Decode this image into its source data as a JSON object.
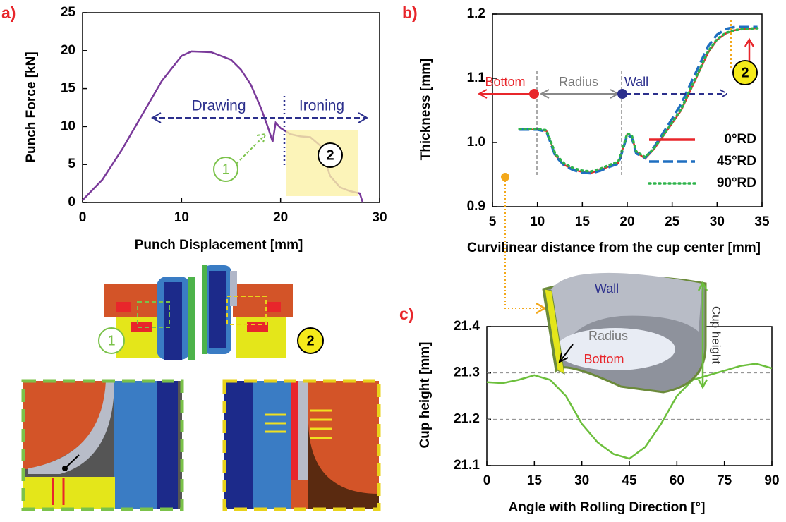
{
  "chart_data": [
    {
      "type": "line",
      "label": "a)",
      "xlabel": "Punch Displacement [mm]",
      "ylabel": "Punch Force [kN]",
      "x": [
        0,
        2,
        4,
        6,
        8,
        10,
        11,
        13,
        15,
        16,
        17,
        18,
        18.7,
        19.2,
        19.5,
        20,
        21,
        22,
        23,
        24,
        25,
        26,
        27,
        28,
        28.3
      ],
      "values": [
        0.3,
        3,
        7,
        11.5,
        16,
        19.3,
        19.9,
        19.8,
        18.8,
        17.5,
        15.5,
        12.5,
        10,
        8,
        10.5,
        9.8,
        9,
        8.7,
        8.6,
        7.5,
        3.5,
        2,
        1.5,
        1.2,
        0
      ],
      "color": "#7a3a9a",
      "xlim": [
        0,
        30
      ],
      "ylim": [
        0,
        25
      ],
      "xticks": [
        0,
        10,
        20,
        30
      ],
      "yticks": [
        0,
        5,
        10,
        15,
        20,
        25
      ],
      "grid": false,
      "annotations": [
        "Drawing",
        "Ironing",
        "1",
        "2"
      ]
    },
    {
      "type": "line",
      "label": "b)",
      "xlabel": "Curvilinear distance from the cup center [mm]",
      "ylabel": "Thickness [mm]",
      "x": [
        8,
        10,
        11,
        11.5,
        12,
        13,
        14,
        15,
        16,
        17,
        18,
        19,
        19.5,
        20,
        20.5,
        21,
        22,
        23,
        24,
        25,
        26,
        27,
        28,
        29,
        30,
        31,
        32,
        33,
        34.5
      ],
      "series": [
        {
          "name": "0°RD",
          "color": "#e8262b",
          "style": "solid",
          "values": [
            1.02,
            1.02,
            1.018,
            1.0,
            0.98,
            0.965,
            0.958,
            0.954,
            0.953,
            0.957,
            0.963,
            0.968,
            0.99,
            1.013,
            1.01,
            0.985,
            0.975,
            0.99,
            1.01,
            1.03,
            1.05,
            1.08,
            1.11,
            1.14,
            1.16,
            1.17,
            1.175,
            1.177,
            1.178
          ]
        },
        {
          "name": "45°RD",
          "color": "#1f6fc0",
          "style": "dashed",
          "values": [
            1.02,
            1.02,
            1.017,
            0.998,
            0.979,
            0.964,
            0.957,
            0.953,
            0.952,
            0.956,
            0.962,
            0.967,
            0.988,
            1.012,
            1.008,
            0.983,
            0.976,
            0.993,
            1.015,
            1.037,
            1.06,
            1.09,
            1.12,
            1.15,
            1.168,
            1.177,
            1.18,
            1.18,
            1.18
          ]
        },
        {
          "name": "90°RD",
          "color": "#2db34a",
          "style": "dotted",
          "values": [
            1.021,
            1.021,
            1.019,
            1.001,
            0.982,
            0.967,
            0.96,
            0.956,
            0.955,
            0.959,
            0.965,
            0.97,
            0.991,
            1.014,
            1.011,
            0.986,
            0.977,
            0.991,
            1.011,
            1.031,
            1.052,
            1.082,
            1.112,
            1.142,
            1.161,
            1.171,
            1.175,
            1.177,
            1.178
          ]
        }
      ],
      "legend": "lower right",
      "xlim": [
        5,
        35
      ],
      "ylim": [
        0.9,
        1.2
      ],
      "xticks": [
        5,
        10,
        15,
        20,
        25,
        30,
        35
      ],
      "yticks": [
        0.9,
        {
          "value": 1,
          "label": "1.0"
        },
        1.1,
        1.2
      ],
      "grid": false,
      "annotations": [
        "Bottom",
        "Radius",
        "Wall",
        "2"
      ]
    },
    {
      "type": "line",
      "label": "c)",
      "xlabel": "Angle with Rolling Direction [°]",
      "ylabel": "Cup height  [mm]",
      "x": [
        0,
        5,
        10,
        15,
        20,
        25,
        30,
        35,
        40,
        45,
        50,
        55,
        60,
        65,
        70,
        75,
        80,
        85,
        90
      ],
      "values": [
        21.28,
        21.278,
        21.285,
        21.295,
        21.285,
        21.25,
        21.19,
        21.15,
        21.125,
        21.115,
        21.14,
        21.19,
        21.25,
        21.285,
        21.295,
        21.305,
        21.315,
        21.32,
        21.31
      ],
      "color": "#6cbf3c",
      "xlim": [
        0,
        90
      ],
      "ylim": [
        21.1,
        21.4
      ],
      "xticks": [
        0,
        15,
        30,
        45,
        60,
        75,
        90
      ],
      "yticks": [
        21.1,
        21.2,
        21.3,
        21.4
      ],
      "grid": true,
      "annotations": [
        "Wall",
        "Radius",
        "Bottom",
        "Cup height"
      ]
    }
  ],
  "diagram": {
    "labels": [
      "1",
      "2"
    ]
  }
}
